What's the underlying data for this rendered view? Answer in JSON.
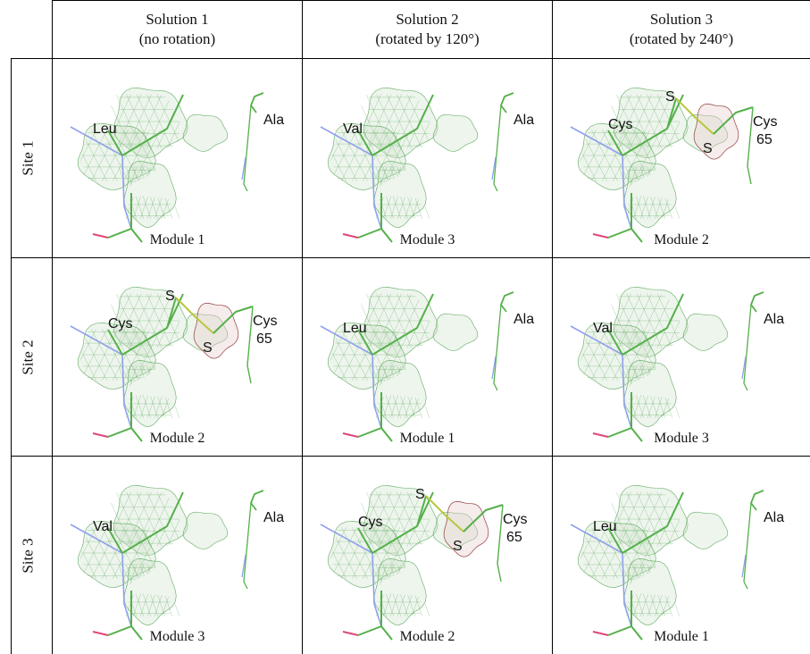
{
  "columns": [
    {
      "title": "Solution 1",
      "subtitle": "(no rotation)"
    },
    {
      "title": "Solution 2",
      "subtitle": "(rotated by 120°)"
    },
    {
      "title": "Solution 3",
      "subtitle": "(rotated by 240°)"
    }
  ],
  "rows": [
    "Site 1",
    "Site 2",
    "Site 3"
  ],
  "cells": [
    [
      {
        "type": "plain",
        "residue": "Leu",
        "neighbor": "Ala",
        "module": "Module 1"
      },
      {
        "type": "plain",
        "residue": "Val",
        "neighbor": "Ala",
        "module": "Module 3"
      },
      {
        "type": "disulfide",
        "residue": "Cys",
        "sulfur1": "S",
        "sulfur2": "S",
        "neighbor": "Cys",
        "neighbor_num": "65",
        "module": "Module 2"
      }
    ],
    [
      {
        "type": "disulfide",
        "residue": "Cys",
        "sulfur1": "S",
        "sulfur2": "S",
        "neighbor": "Cys",
        "neighbor_num": "65",
        "module": "Module 2"
      },
      {
        "type": "plain",
        "residue": "Leu",
        "neighbor": "Ala",
        "module": "Module 1"
      },
      {
        "type": "plain",
        "residue": "Val",
        "neighbor": "Ala",
        "module": "Module 3"
      }
    ],
    [
      {
        "type": "plain",
        "residue": "Val",
        "neighbor": "Ala",
        "module": "Module 3"
      },
      {
        "type": "disulfide",
        "residue": "Cys",
        "sulfur1": "S",
        "sulfur2": "S",
        "neighbor": "Cys",
        "neighbor_num": "65",
        "module": "Module 2"
      },
      {
        "type": "plain",
        "residue": "Leu",
        "neighbor": "Ala",
        "module": "Module 1"
      }
    ]
  ],
  "colors": {
    "density_mesh": "#3f9a3f",
    "difference_density": "#8a2a2a",
    "bond_green": "#55b04a",
    "bond_yellow": "#b8c83a",
    "bond_blue": "#8fa0ee",
    "bond_red": "#e0457a"
  }
}
